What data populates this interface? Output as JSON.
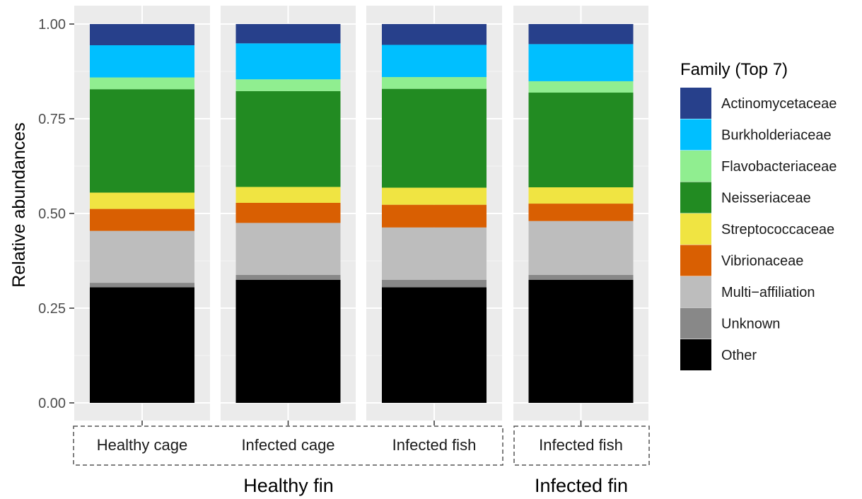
{
  "chart_data": {
    "type": "bar",
    "stacked": true,
    "ylabel": "Relative abundances",
    "ylim": [
      0,
      1
    ],
    "yticks": [
      "0.00",
      "0.25",
      "0.50",
      "0.75",
      "1.00"
    ],
    "grid": true,
    "legend_title": "Family (Top 7)",
    "legend_position": "right",
    "categories": [
      "Healthy cage",
      "Infected cage",
      "Infected fish",
      "Infected fish"
    ],
    "groups": [
      {
        "label": "Healthy fin",
        "categories": [
          0,
          1,
          2
        ]
      },
      {
        "label": "Infected fin",
        "categories": [
          3
        ]
      }
    ],
    "series": [
      {
        "name": "Other",
        "color": "#000000",
        "values": [
          0.305,
          0.325,
          0.305,
          0.325
        ]
      },
      {
        "name": "Unknown",
        "color": "#888888",
        "values": [
          0.012,
          0.013,
          0.02,
          0.013
        ]
      },
      {
        "name": "Multi−affiliation",
        "color": "#bdbdbd",
        "values": [
          0.137,
          0.137,
          0.138,
          0.142
        ]
      },
      {
        "name": "Vibrionaceae",
        "color": "#d95f02",
        "values": [
          0.058,
          0.053,
          0.06,
          0.046
        ]
      },
      {
        "name": "Streptococcaceae",
        "color": "#f0e442",
        "values": [
          0.043,
          0.042,
          0.045,
          0.043
        ]
      },
      {
        "name": "Neisseriaceae",
        "color": "#228b22",
        "values": [
          0.273,
          0.253,
          0.261,
          0.25
        ]
      },
      {
        "name": "Flavobacteriaceae",
        "color": "#90ee90",
        "values": [
          0.031,
          0.031,
          0.031,
          0.03
        ]
      },
      {
        "name": "Burkholderiaceae",
        "color": "#00bfff",
        "values": [
          0.085,
          0.095,
          0.085,
          0.098
        ]
      },
      {
        "name": "Actinomycetaceae",
        "color": "#27408b",
        "values": [
          0.056,
          0.051,
          0.055,
          0.053
        ]
      }
    ],
    "legend_order": [
      "Actinomycetaceae",
      "Burkholderiaceae",
      "Flavobacteriaceae",
      "Neisseriaceae",
      "Streptococcaceae",
      "Vibrionaceae",
      "Multi−affiliation",
      "Unknown",
      "Other"
    ]
  }
}
